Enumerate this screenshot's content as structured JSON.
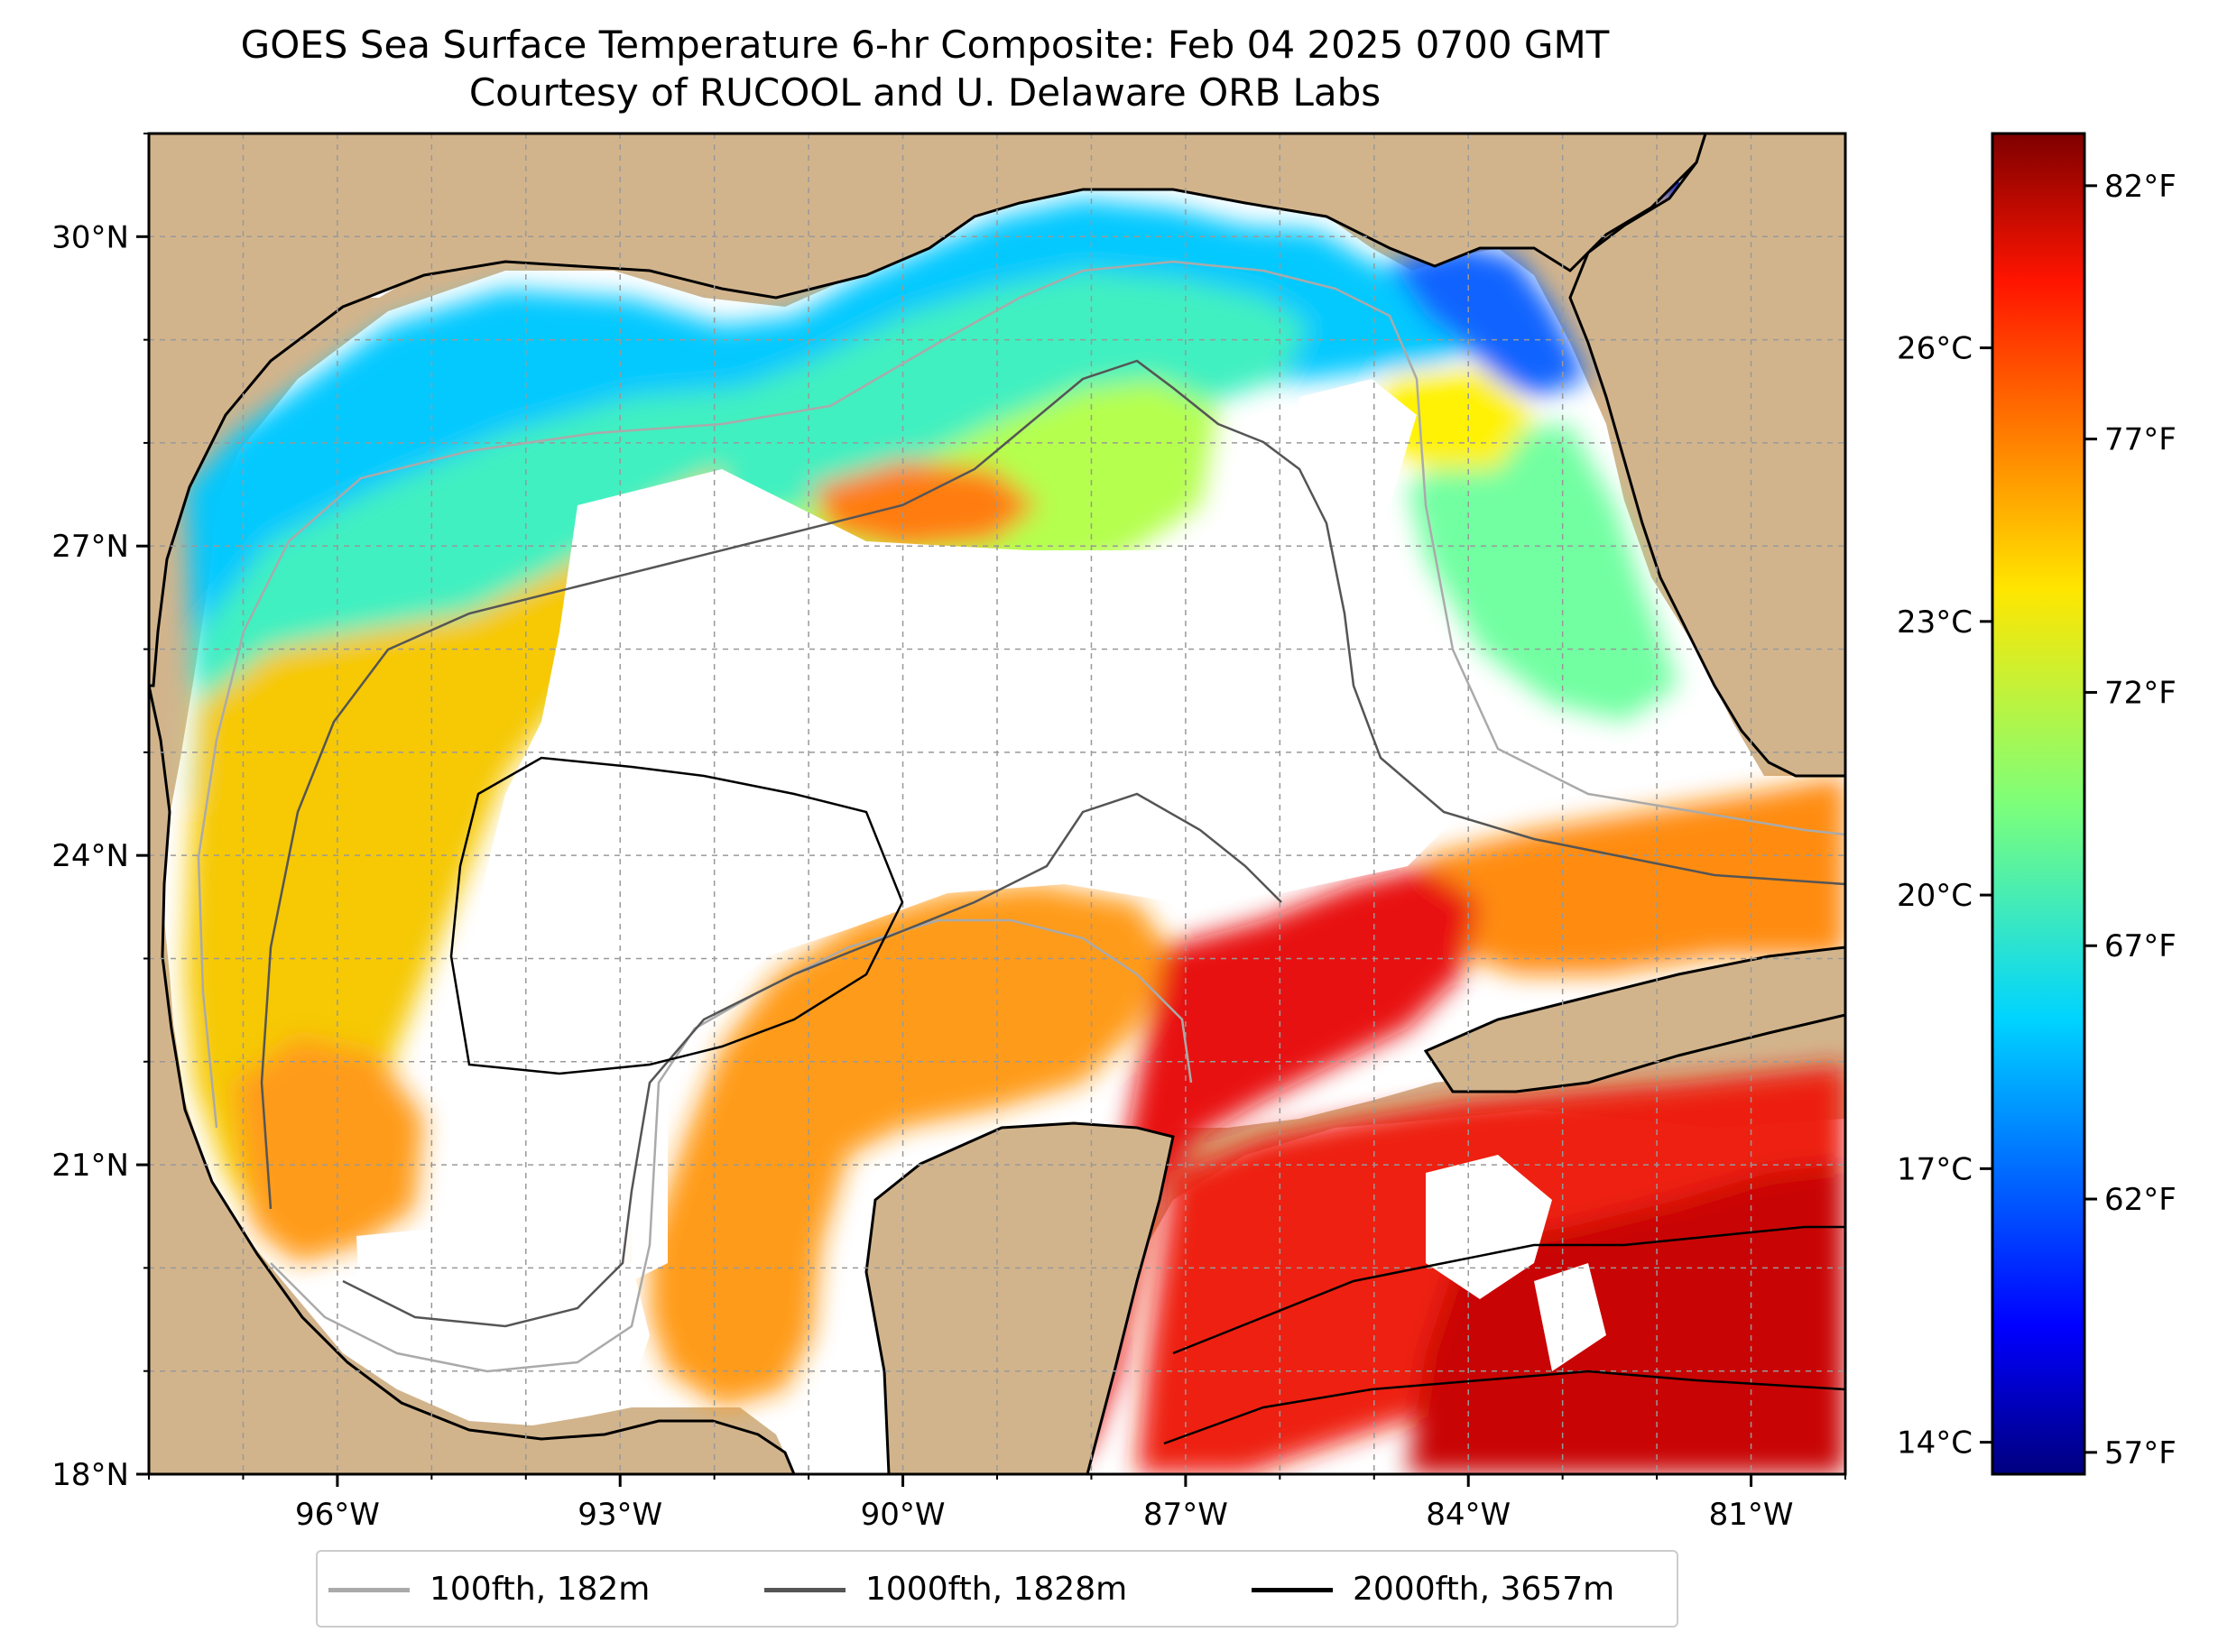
{
  "title": {
    "line1": "GOES Sea Surface Temperature 6-hr Composite: Feb 04 2025 0700 GMT",
    "line2": "Courtesy of RUCOOL and U. Delaware ORB Labs"
  },
  "map": {
    "lat_range": [
      18,
      31
    ],
    "lon_range": [
      -98,
      -80
    ],
    "lat_ticks": [
      {
        "value": 18,
        "label": "18°N"
      },
      {
        "value": 21,
        "label": "21°N"
      },
      {
        "value": 24,
        "label": "24°N"
      },
      {
        "value": 27,
        "label": "27°N"
      },
      {
        "value": 30,
        "label": "30°N"
      }
    ],
    "lon_ticks": [
      {
        "value": -96,
        "label": "96°W"
      },
      {
        "value": -93,
        "label": "93°W"
      },
      {
        "value": -90,
        "label": "90°W"
      },
      {
        "value": -87,
        "label": "87°W"
      },
      {
        "value": -84,
        "label": "84°W"
      },
      {
        "value": -81,
        "label": "81°W"
      }
    ],
    "land_color": "#d2b48c",
    "no_data_color": "#ffffff",
    "gridlines": true
  },
  "colorbar": {
    "colormap": "jet",
    "celsius_ticks": [
      {
        "value": 14,
        "label": "14°C"
      },
      {
        "value": 17,
        "label": "17°C"
      },
      {
        "value": 20,
        "label": "20°C"
      },
      {
        "value": 23,
        "label": "23°C"
      },
      {
        "value": 26,
        "label": "26°C"
      }
    ],
    "fahrenheit_ticks": [
      {
        "value": 57,
        "label": "57°F"
      },
      {
        "value": 62,
        "label": "62°F"
      },
      {
        "value": 67,
        "label": "67°F"
      },
      {
        "value": 72,
        "label": "72°F"
      },
      {
        "value": 77,
        "label": "77°F"
      },
      {
        "value": 82,
        "label": "82°F"
      }
    ]
  },
  "legend": [
    {
      "label": "100fth, 182m",
      "color": "#aaaaaa"
    },
    {
      "label": "1000fth, 1828m",
      "color": "#555555"
    },
    {
      "label": "2000fth, 3657m",
      "color": "#000000"
    }
  ]
}
